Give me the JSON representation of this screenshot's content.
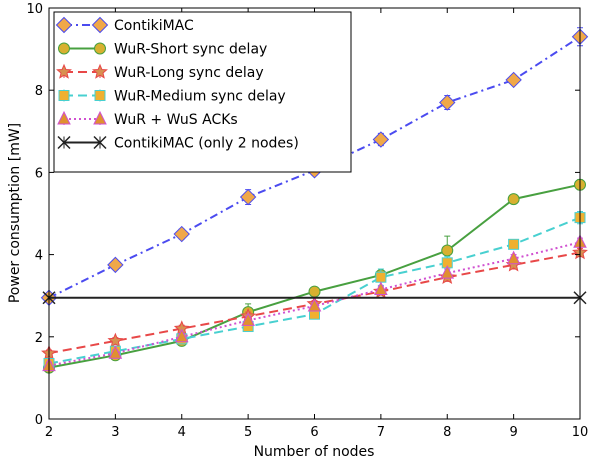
{
  "chart_data": {
    "type": "line",
    "xlabel": "Number of nodes",
    "ylabel": "Power consumption [mW]",
    "xlim": [
      2,
      10
    ],
    "ylim": [
      0,
      10
    ],
    "x_ticks": [
      "2",
      "3",
      "4",
      "5",
      "6",
      "7",
      "8",
      "9",
      "10"
    ],
    "y_ticks": [
      "0",
      "2",
      "4",
      "6",
      "8",
      "10"
    ],
    "grid": false,
    "legend_position": "top-left",
    "series": [
      {
        "name": "ContikiMAC",
        "x": [
          2,
          3,
          4,
          5,
          6,
          7,
          8,
          9,
          10
        ],
        "values": [
          2.95,
          3.75,
          4.5,
          5.4,
          6.05,
          6.8,
          7.7,
          8.25,
          9.3
        ],
        "errors": [
          0.05,
          0.1,
          0.12,
          0.18,
          0.12,
          0.15,
          0.17,
          0.1,
          0.22
        ],
        "line_color": "#4b4bf0",
        "marker": "diamond",
        "marker_color": "#f0a848",
        "dash": "8,4,2,4"
      },
      {
        "name": "WuR-Short sync delay",
        "x": [
          2,
          3,
          4,
          5,
          6,
          7,
          8,
          9,
          10
        ],
        "values": [
          1.25,
          1.55,
          1.9,
          2.6,
          3.1,
          3.5,
          4.1,
          5.35,
          5.7
        ],
        "errors": [
          0.1,
          0.1,
          0.1,
          0.2,
          0.08,
          0.1,
          0.35,
          0.1,
          0.12
        ],
        "line_color": "#48a040",
        "marker": "circle",
        "marker_color": "#d8b030",
        "dash": ""
      },
      {
        "name": "WuR-Long sync delay",
        "x": [
          2,
          3,
          4,
          5,
          6,
          7,
          8,
          9,
          10
        ],
        "values": [
          1.6,
          1.9,
          2.2,
          2.5,
          2.8,
          3.1,
          3.45,
          3.75,
          4.05
        ],
        "errors": [
          0.08,
          0.08,
          0.08,
          0.1,
          0.08,
          0.08,
          0.1,
          0.1,
          0.1
        ],
        "line_color": "#e84848",
        "marker": "star",
        "marker_color": "#d89050",
        "dash": "9,5"
      },
      {
        "name": "WuR-Medium sync delay",
        "x": [
          2,
          3,
          4,
          5,
          6,
          7,
          8,
          9,
          10
        ],
        "values": [
          1.35,
          1.65,
          1.95,
          2.25,
          2.55,
          3.45,
          3.8,
          4.25,
          4.9
        ],
        "errors": [
          0.08,
          0.08,
          0.08,
          0.12,
          0.08,
          0.2,
          0.15,
          0.1,
          0.15
        ],
        "line_color": "#48d0d0",
        "marker": "square",
        "marker_color": "#f0b030",
        "dash": "9,5"
      },
      {
        "name": "WuR + WuS ACKs",
        "x": [
          2,
          3,
          4,
          5,
          6,
          7,
          8,
          9,
          10
        ],
        "values": [
          1.3,
          1.6,
          2.0,
          2.4,
          2.75,
          3.15,
          3.55,
          3.9,
          4.3
        ],
        "errors": [
          0.08,
          0.08,
          0.08,
          0.1,
          0.08,
          0.08,
          0.1,
          0.1,
          0.1
        ],
        "line_color": "#d050d0",
        "marker": "triangle",
        "marker_color": "#e09030",
        "dash": "2,3"
      },
      {
        "name": "ContikiMAC (only 2 nodes)",
        "x": [
          2,
          10
        ],
        "values": [
          2.95,
          2.95
        ],
        "errors": [
          0,
          0
        ],
        "line_color": "#222222",
        "marker": "x",
        "marker_color": "#222222",
        "dash": ""
      }
    ]
  }
}
